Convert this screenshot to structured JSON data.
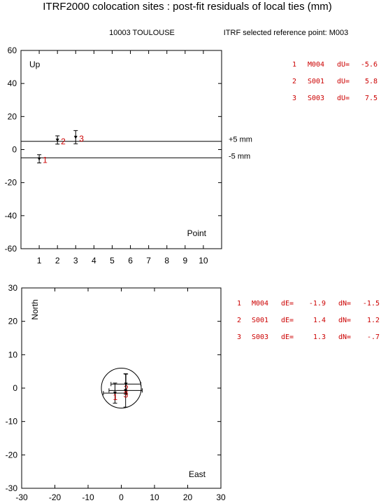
{
  "title": "ITRF2000 colocation sites : post-fit residuals of local ties (mm)",
  "subtitle": {
    "site": "10003 TOULOUSE",
    "reference": "ITRF selected reference point: M003"
  },
  "colors": {
    "points": "#cc0000",
    "axes": "#000000"
  },
  "chart_data": [
    {
      "type": "scatter",
      "panel": "up",
      "corner_label": "Up",
      "xlabel": "Point",
      "ylabel": "",
      "xlim": [
        0,
        11
      ],
      "ylim": [
        -60,
        60
      ],
      "xticks": [
        1,
        2,
        3,
        4,
        5,
        6,
        7,
        8,
        9,
        10
      ],
      "yticks": [
        60,
        40,
        20,
        0,
        -20,
        -40,
        -60
      ],
      "reference_lines": [
        {
          "value": 5,
          "label": "+5 mm"
        },
        {
          "value": -5,
          "label": "-5 mm"
        }
      ],
      "points": [
        {
          "id": "1",
          "code": "M004",
          "x": 1,
          "y": -5.6,
          "err": 2.5
        },
        {
          "id": "2",
          "code": "S001",
          "x": 2,
          "y": 5.8,
          "err": 2.5
        },
        {
          "id": "3",
          "code": "S003",
          "x": 3,
          "y": 7.5,
          "err": 4
        }
      ],
      "listing": [
        {
          "num": "1",
          "code": "M004",
          "field": "dU=",
          "value": "-5.6"
        },
        {
          "num": "2",
          "code": "S001",
          "field": "dU=",
          "value": "5.8"
        },
        {
          "num": "3",
          "code": "S003",
          "field": "dU=",
          "value": "7.5"
        }
      ]
    },
    {
      "type": "scatter",
      "panel": "horizontal",
      "xlabel": "East",
      "ylabel": "North",
      "xlim": [
        -30,
        30
      ],
      "ylim": [
        -30,
        30
      ],
      "xticks": [
        -30,
        -20,
        -10,
        0,
        10,
        20,
        30
      ],
      "yticks": [
        30,
        20,
        10,
        0,
        -10,
        -20,
        -30
      ],
      "circle_radius": 6,
      "points": [
        {
          "id": "1",
          "code": "M004",
          "dE": -1.9,
          "dN": -1.5,
          "errE": 3.5,
          "errN": 3
        },
        {
          "id": "2",
          "code": "S001",
          "dE": 1.4,
          "dN": 1.2,
          "errE": 4.5,
          "errN": 3
        },
        {
          "id": "3",
          "code": "S003",
          "dE": 1.3,
          "dN": -0.7,
          "errE": 5,
          "errN": 5
        }
      ],
      "listing": [
        {
          "num": "1",
          "code": "M004",
          "f1": "dE=",
          "v1": "-1.9",
          "f2": "dN=",
          "v2": "-1.5"
        },
        {
          "num": "2",
          "code": "S001",
          "f1": "dE=",
          "v1": "1.4",
          "f2": "dN=",
          "v2": "1.2"
        },
        {
          "num": "3",
          "code": "S003",
          "f1": "dE=",
          "v1": "1.3",
          "f2": "dN=",
          "v2": "-.7"
        }
      ]
    }
  ]
}
